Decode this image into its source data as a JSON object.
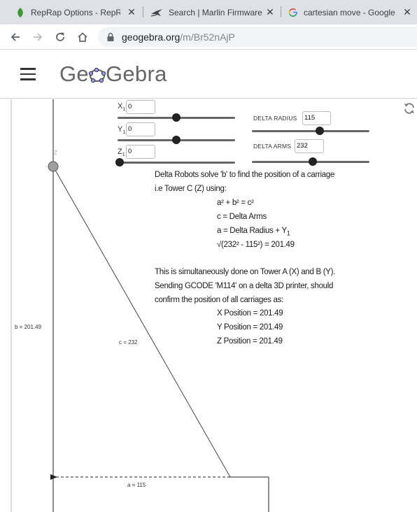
{
  "browser": {
    "tabs": [
      {
        "title": "RepRap Options - RepRap",
        "favicon": "reprap-leaf-icon",
        "color": "#3a9a2e"
      },
      {
        "title": "Search | Marlin Firmware",
        "favicon": "marlin-icon",
        "color": "#444444"
      },
      {
        "title": "cartesian move - Google",
        "favicon": "google-g-icon",
        "color": "#4285f4"
      }
    ],
    "address": {
      "host": "geogebra.org",
      "path": "/m/Br52nAjP"
    }
  },
  "header": {
    "logo_prefix": "Ge",
    "logo_suffix": "Gebra"
  },
  "applet": {
    "sliders": {
      "x1": {
        "label": "X",
        "sub": "1",
        "value": "0",
        "fraction": 0.5
      },
      "y1": {
        "label": "Y",
        "sub": "1",
        "value": "0",
        "fraction": 0.5
      },
      "z1": {
        "label": "Z",
        "sub": "1",
        "value": "0",
        "fraction": 0.0
      },
      "delta_radius": {
        "label": "DELTA RADIUS",
        "value": "115",
        "fraction": 0.58
      },
      "delta_arms": {
        "label": "DELTA ARMS",
        "value": "232",
        "fraction": 0.52
      }
    },
    "labels": {
      "tower_z": "Z",
      "b": "b = 201.49",
      "c": "c = 232",
      "a": "a = 115"
    },
    "text": {
      "intro_1": "Delta Robots solve 'b'  to find the position of a carriage",
      "intro_2": "i.e Tower C (Z) using:",
      "eq_1": "a² + b² = c²",
      "eq_2": "c = Delta Arms",
      "eq_3_main": "a = Delta Radius + Y",
      "eq_3_sub": "1",
      "eq_4": "√(232² - 115²) = 201.49",
      "para_1": "This is simultaneously done on Tower A (X) and B (Y).",
      "para_2": "Sending GCODE 'M114' on a delta 3D printer, should",
      "para_3": "confirm the position of all carriages as:",
      "pos_x": "X Position = 201.49",
      "pos_y": "Y Position = 201.49",
      "pos_z": "Z Position = 201.49"
    }
  },
  "colors": {
    "tabstrip": "#dee1e6",
    "line": "#444444",
    "point": "#a0a0a0"
  }
}
